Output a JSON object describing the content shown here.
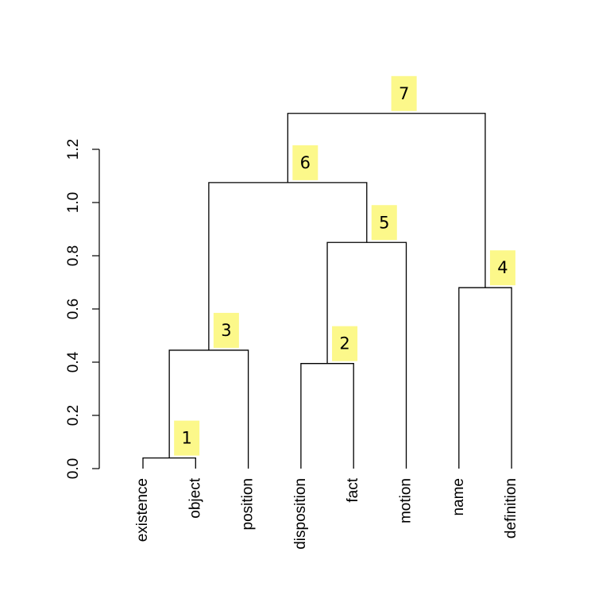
{
  "chart_data": {
    "type": "dendrogram",
    "title": "",
    "xlabel": "",
    "ylabel": "",
    "ylim": [
      0,
      1.2
    ],
    "y_ticks": [
      "0.0",
      "0.2",
      "0.4",
      "0.6",
      "0.8",
      "1.0",
      "1.2"
    ],
    "y_tick_values": [
      0,
      0.2,
      0.4,
      0.6,
      0.8,
      1.0,
      1.2
    ],
    "leaves": [
      "existence",
      "object",
      "position",
      "disposition",
      "fact",
      "motion",
      "name",
      "definition"
    ],
    "merges": [
      {
        "id": "1",
        "left": "L0",
        "right": "L1",
        "height": 0.04
      },
      {
        "id": "2",
        "left": "L3",
        "right": "L4",
        "height": 0.395
      },
      {
        "id": "3",
        "left": "M1",
        "right": "L2",
        "height": 0.445
      },
      {
        "id": "4",
        "left": "L6",
        "right": "L7",
        "height": 0.68
      },
      {
        "id": "5",
        "left": "M2",
        "right": "L5",
        "height": 0.85
      },
      {
        "id": "6",
        "left": "M3",
        "right": "M5",
        "height": 1.075
      },
      {
        "id": "7",
        "left": "M6",
        "right": "M4",
        "height": 1.335
      }
    ],
    "highlight_color": "#fcf88a",
    "line_color": "#000000"
  }
}
